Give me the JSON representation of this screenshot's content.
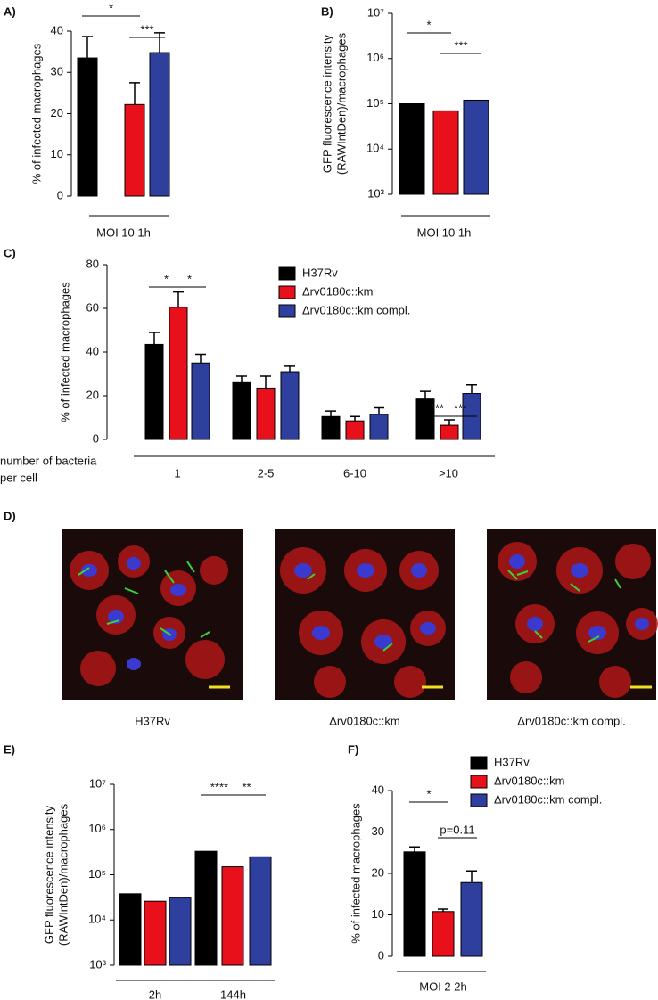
{
  "chart_data": [
    {
      "type": "bar",
      "panel": "A)",
      "ylabel": [
        "% of infected macrophages"
      ],
      "categories": [
        "MOI 10 1h"
      ],
      "series": [
        {
          "color": "#000000",
          "values": [
            33.5
          ],
          "errors": [
            5.2
          ]
        },
        {
          "color": "#e8101a",
          "values": [
            22.2
          ],
          "errors": [
            5.3
          ]
        },
        {
          "color": "#2e3f9e",
          "values": [
            34.8
          ],
          "errors": [
            4.8
          ]
        }
      ],
      "ylim": [
        0,
        40
      ],
      "yticks": [
        0,
        10,
        20,
        30,
        40
      ],
      "annotations": [
        "*",
        "***"
      ]
    },
    {
      "type": "bar",
      "panel": "B)",
      "ylabel": [
        "GFP fluorescence intensity",
        "(RAWIntDen)/macrophages"
      ],
      "categories": [
        "MOI 10 1h"
      ],
      "log_scale": true,
      "series": [
        {
          "color": "#000000",
          "values": [
            100000
          ]
        },
        {
          "color": "#e8101a",
          "values": [
            70000
          ]
        },
        {
          "color": "#2e3f9e",
          "values": [
            120000
          ]
        }
      ],
      "ylim": [
        1000,
        10000000
      ],
      "yticks": [
        {
          "value": 1000,
          "label": "10³"
        },
        {
          "value": 10000,
          "label": "10⁴"
        },
        {
          "value": 100000,
          "label": "10⁵"
        },
        {
          "value": 1000000,
          "label": "10⁶"
        },
        {
          "value": 10000000,
          "label": "10⁷"
        }
      ],
      "annotations": [
        "*",
        "***"
      ]
    },
    {
      "type": "bar",
      "panel": "C)",
      "ylabel": [
        "% of infected macrophages"
      ],
      "xlabel": [
        "number of bacteria",
        "per cell"
      ],
      "categories": [
        "1",
        "2-5",
        "6-10",
        ">10"
      ],
      "series": [
        {
          "name": "H37Rv",
          "color": "#000000",
          "values": [
            43.5,
            26,
            10.5,
            18.5
          ],
          "errors": [
            5.5,
            3,
            2.5,
            3.5
          ]
        },
        {
          "name": "Δrv0180c::km",
          "color": "#e8101a",
          "values": [
            60.5,
            23.5,
            8.5,
            6.5
          ],
          "errors": [
            7,
            5.5,
            2,
            2.5
          ]
        },
        {
          "name": "Δrv0180c::km compl.",
          "color": "#2e3f9e",
          "values": [
            35,
            31,
            11.5,
            21
          ],
          "errors": [
            4,
            2.5,
            3,
            4
          ]
        }
      ],
      "ylim": [
        0,
        80
      ],
      "yticks": [
        0,
        20,
        40,
        60,
        80
      ],
      "legend": "top-right",
      "annotations": [
        "*",
        "*",
        "***",
        "***"
      ]
    },
    {
      "type": "bar",
      "panel": "E)",
      "ylabel": [
        "GFP fluorescence intensity",
        "(RAWIntDen)/macrophages"
      ],
      "categories": [
        "2h",
        "144h"
      ],
      "log_scale": true,
      "series": [
        {
          "color": "#000000",
          "values": [
            38000,
            330000
          ]
        },
        {
          "color": "#e8101a",
          "values": [
            26000,
            150000
          ]
        },
        {
          "color": "#2e3f9e",
          "values": [
            32000,
            250000
          ]
        }
      ],
      "ylim": [
        1000,
        10000000
      ],
      "yticks": [
        {
          "value": 1000,
          "label": "10³"
        },
        {
          "value": 10000,
          "label": "10⁴"
        },
        {
          "value": 100000,
          "label": "10⁵"
        },
        {
          "value": 1000000,
          "label": "10⁶"
        },
        {
          "value": 10000000,
          "label": "10⁷"
        }
      ],
      "annotations": [
        "****",
        "**"
      ]
    },
    {
      "type": "bar",
      "panel": "F)",
      "ylabel": [
        "% of infected macrophages"
      ],
      "categories": [
        "MOI 2 2h"
      ],
      "series": [
        {
          "name": "H37Rv",
          "color": "#000000",
          "values": [
            25.2
          ],
          "errors": [
            1.2
          ]
        },
        {
          "name": "Δrv0180c::km",
          "color": "#e8101a",
          "values": [
            10.8
          ],
          "errors": [
            0.6
          ]
        },
        {
          "name": "Δrv0180c::km compl.",
          "color": "#2e3f9e",
          "values": [
            17.8
          ],
          "errors": [
            2.8
          ]
        }
      ],
      "ylim": [
        0,
        40
      ],
      "yticks": [
        0,
        10,
        20,
        30,
        40
      ],
      "legend": "top-right",
      "annotations": [
        "*",
        "p=0.11"
      ]
    }
  ],
  "figure_d": {
    "panel": "D)",
    "captions": [
      "H37Rv",
      "Δrv0180c::km",
      "Δrv0180c::km compl."
    ]
  }
}
